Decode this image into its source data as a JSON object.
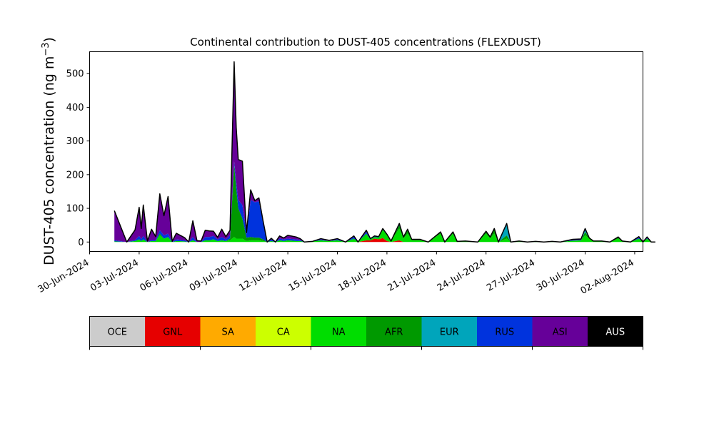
{
  "chart_data": {
    "type": "area",
    "title": "Continental contribution to DUST-405 concentrations (FLEXDUST)",
    "ylabel": "DUST-405 concentration (ng m",
    "ylabel_sup": "−3",
    "ylabel_close": ")",
    "xlabel": "",
    "ylim": [
      -28,
      565
    ],
    "xlim": [
      "2024-06-30T00:00",
      "2024-08-02T12:00"
    ],
    "yticks": [
      0,
      100,
      200,
      300,
      400,
      500
    ],
    "xticks": [
      "2024-06-30",
      "2024-07-03",
      "2024-07-06",
      "2024-07-09",
      "2024-07-12",
      "2024-07-15",
      "2024-07-18",
      "2024-07-21",
      "2024-07-24",
      "2024-07-27",
      "2024-07-30",
      "2024-08-02"
    ],
    "xtick_labels": [
      "30-Jun-2024",
      "03-Jul-2024",
      "06-Jul-2024",
      "09-Jul-2024",
      "12-Jul-2024",
      "15-Jul-2024",
      "18-Jul-2024",
      "21-Jul-2024",
      "24-Jul-2024",
      "27-Jul-2024",
      "30-Jul-2024",
      "02-Aug-2024"
    ],
    "grid": false,
    "legend_position": "below (horizontal color bar)",
    "series": [
      {
        "name": "OCE",
        "color": "#cccccc"
      },
      {
        "name": "GNL",
        "color": "#e60000"
      },
      {
        "name": "SA",
        "color": "#ffaa00"
      },
      {
        "name": "CA",
        "color": "#ccff00"
      },
      {
        "name": "NA",
        "color": "#00dd00"
      },
      {
        "name": "AFR",
        "color": "#009900"
      },
      {
        "name": "EUR",
        "color": "#00a5bb"
      },
      {
        "name": "RUS",
        "color": "#0033dd"
      },
      {
        "name": "ASI",
        "color": "#660099"
      },
      {
        "name": "AUS",
        "color": "#000000"
      }
    ],
    "points": [
      {
        "t": "2024-07-01T12:00",
        "v": {
          "NA": 2,
          "RUS": 3,
          "ASI": 88
        }
      },
      {
        "t": "2024-07-02T06:00",
        "v": {
          "NA": 0,
          "ASI": 0
        }
      },
      {
        "t": "2024-07-02T18:00",
        "v": {
          "NA": 3,
          "RUS": 3,
          "ASI": 30
        }
      },
      {
        "t": "2024-07-03T00:00",
        "v": {
          "NA": 8,
          "RUS": 10,
          "ASI": 85
        }
      },
      {
        "t": "2024-07-03T03:00",
        "v": {
          "NA": 3,
          "RUS": 5,
          "ASI": 32
        }
      },
      {
        "t": "2024-07-03T06:00",
        "v": {
          "NA": 8,
          "RUS": 10,
          "ASI": 92
        }
      },
      {
        "t": "2024-07-03T12:00",
        "v": {
          "ASI": 3
        }
      },
      {
        "t": "2024-07-03T18:00",
        "v": {
          "NA": 3,
          "RUS": 3,
          "ASI": 32
        }
      },
      {
        "t": "2024-07-04T00:00",
        "v": {
          "NA": 3,
          "RUS": 3,
          "ASI": 10
        }
      },
      {
        "t": "2024-07-04T06:00",
        "v": {
          "NA": 20,
          "AFR": 5,
          "RUS": 10,
          "ASI": 108
        }
      },
      {
        "t": "2024-07-04T12:00",
        "v": {
          "NA": 10,
          "RUS": 10,
          "ASI": 58
        }
      },
      {
        "t": "2024-07-04T18:00",
        "v": {
          "NA": 15,
          "RUS": 10,
          "ASI": 110
        }
      },
      {
        "t": "2024-07-05T00:00",
        "v": {
          "ASI": 2
        }
      },
      {
        "t": "2024-07-05T06:00",
        "v": {
          "NA": 3,
          "RUS": 5,
          "ASI": 18
        }
      },
      {
        "t": "2024-07-05T18:00",
        "v": {
          "NA": 2,
          "RUS": 3,
          "ASI": 8
        }
      },
      {
        "t": "2024-07-06T00:00",
        "v": {
          "ASI": 0
        }
      },
      {
        "t": "2024-07-06T06:00",
        "v": {
          "NA": 5,
          "RUS": 10,
          "ASI": 48
        }
      },
      {
        "t": "2024-07-06T12:00",
        "v": {
          "ASI": 4
        }
      },
      {
        "t": "2024-07-06T18:00",
        "v": {
          "ASI": 3
        }
      },
      {
        "t": "2024-07-07T00:00",
        "v": {
          "NA": 5,
          "RUS": 10,
          "ASI": 20
        }
      },
      {
        "t": "2024-07-07T06:00",
        "v": {
          "NA": 5,
          "RUS": 10,
          "ASI": 18
        }
      },
      {
        "t": "2024-07-07T12:00",
        "v": {
          "NA": 8,
          "RUS": 10,
          "ASI": 14
        }
      },
      {
        "t": "2024-07-07T18:00",
        "v": {
          "NA": 3,
          "RUS": 5,
          "ASI": 6
        }
      },
      {
        "t": "2024-07-08T00:00",
        "v": {
          "NA": 5,
          "RUS": 10,
          "ASI": 23
        }
      },
      {
        "t": "2024-07-08T06:00",
        "v": {
          "NA": 3,
          "RUS": 5,
          "ASI": 8
        }
      },
      {
        "t": "2024-07-08T12:00",
        "v": {
          "NA": 5,
          "AFR": 5,
          "RUS": 10,
          "ASI": 15
        }
      },
      {
        "t": "2024-07-08T18:00",
        "v": {
          "NA": 15,
          "AFR": 215,
          "RUS": 10,
          "ASI": 295
        }
      },
      {
        "t": "2024-07-08T21:00",
        "v": {
          "NA": 10,
          "AFR": 150,
          "RUS": 20,
          "ASI": 160
        }
      },
      {
        "t": "2024-07-09T00:00",
        "v": {
          "NA": 10,
          "AFR": 90,
          "RUS": 25,
          "ASI": 120
        }
      },
      {
        "t": "2024-07-09T06:00",
        "v": {
          "NA": 10,
          "AFR": 60,
          "RUS": 40,
          "ASI": 130
        }
      },
      {
        "t": "2024-07-09T12:00",
        "v": {
          "NA": 3,
          "AFR": 10,
          "RUS": 10,
          "ASI": 5
        }
      },
      {
        "t": "2024-07-09T18:00",
        "v": {
          "NA": 5,
          "AFR": 10,
          "RUS": 110,
          "ASI": 30
        }
      },
      {
        "t": "2024-07-10T00:00",
        "v": {
          "NA": 5,
          "AFR": 8,
          "RUS": 105,
          "ASI": 5
        }
      },
      {
        "t": "2024-07-10T06:00",
        "v": {
          "NA": 5,
          "AFR": 8,
          "RUS": 108,
          "ASI": 10
        }
      },
      {
        "t": "2024-07-10T12:00",
        "v": {
          "NA": 3,
          "AFR": 5,
          "RUS": 50,
          "ASI": 5
        }
      },
      {
        "t": "2024-07-10T18:00",
        "v": {
          "NA": 0
        }
      },
      {
        "t": "2024-07-11T00:00",
        "v": {
          "NA": 3,
          "RUS": 5,
          "ASI": 3
        }
      },
      {
        "t": "2024-07-11T06:00",
        "v": {
          "NA": 0
        }
      },
      {
        "t": "2024-07-11T12:00",
        "v": {
          "NA": 5,
          "RUS": 5,
          "ASI": 8
        }
      },
      {
        "t": "2024-07-11T18:00",
        "v": {
          "NA": 3,
          "RUS": 5,
          "ASI": 4
        }
      },
      {
        "t": "2024-07-12T00:00",
        "v": {
          "NA": 5,
          "RUS": 5,
          "ASI": 10
        }
      },
      {
        "t": "2024-07-12T12:00",
        "v": {
          "NA": 3,
          "RUS": 5,
          "ASI": 7
        }
      },
      {
        "t": "2024-07-12T18:00",
        "v": {
          "NA": 3,
          "RUS": 3,
          "ASI": 4
        }
      },
      {
        "t": "2024-07-13T00:00",
        "v": {
          "NA": 0
        }
      },
      {
        "t": "2024-07-13T12:00",
        "v": {
          "NA": 2
        }
      },
      {
        "t": "2024-07-14T00:00",
        "v": {
          "NA": 5,
          "RUS": 3,
          "ASI": 2
        }
      },
      {
        "t": "2024-07-14T12:00",
        "v": {
          "NA": 3,
          "ASI": 2
        }
      },
      {
        "t": "2024-07-15T00:00",
        "v": {
          "NA": 5,
          "RUS": 3,
          "ASI": 2
        }
      },
      {
        "t": "2024-07-15T12:00",
        "v": {
          "NA": 0
        }
      },
      {
        "t": "2024-07-16T00:00",
        "v": {
          "NA": 10,
          "RUS": 5,
          "ASI": 3
        }
      },
      {
        "t": "2024-07-16T06:00",
        "v": {
          "NA": 0
        }
      },
      {
        "t": "2024-07-16T18:00",
        "v": {
          "GNL": 5,
          "NA": 20,
          "RUS": 5,
          "ASI": 5
        }
      },
      {
        "t": "2024-07-17T00:00",
        "v": {
          "GNL": 5,
          "NA": 3,
          "RUS": 2
        }
      },
      {
        "t": "2024-07-17T06:00",
        "v": {
          "GNL": 10,
          "NA": 5,
          "RUS": 3
        }
      },
      {
        "t": "2024-07-17T12:00",
        "v": {
          "GNL": 8,
          "NA": 5,
          "RUS": 3
        }
      },
      {
        "t": "2024-07-17T18:00",
        "v": {
          "GNL": 12,
          "NA": 25,
          "RUS": 3
        }
      },
      {
        "t": "2024-07-18T00:00",
        "v": {
          "GNL": 3,
          "NA": 18,
          "RUS": 2
        }
      },
      {
        "t": "2024-07-18T06:00",
        "v": {
          "NA": 3
        }
      },
      {
        "t": "2024-07-18T18:00",
        "v": {
          "GNL": 5,
          "NA": 35,
          "AFR": 10,
          "RUS": 5
        }
      },
      {
        "t": "2024-07-19T00:00",
        "v": {
          "NA": 10,
          "AFR": 5
        }
      },
      {
        "t": "2024-07-19T06:00",
        "v": {
          "NA": 25,
          "AFR": 10,
          "RUS": 3
        }
      },
      {
        "t": "2024-07-19T12:00",
        "v": {
          "NA": 5,
          "AFR": 3
        }
      },
      {
        "t": "2024-07-20T00:00",
        "v": {
          "NA": 5,
          "AFR": 3
        }
      },
      {
        "t": "2024-07-20T12:00",
        "v": {
          "NA": 0
        }
      },
      {
        "t": "2024-07-21T06:00",
        "v": {
          "NA": 25,
          "AFR": 5
        }
      },
      {
        "t": "2024-07-21T12:00",
        "v": {
          "NA": 0
        }
      },
      {
        "t": "2024-07-22T00:00",
        "v": {
          "NA": 25,
          "AFR": 5
        }
      },
      {
        "t": "2024-07-22T06:00",
        "v": {
          "NA": 2
        }
      },
      {
        "t": "2024-07-22T18:00",
        "v": {
          "NA": 3
        }
      },
      {
        "t": "2024-07-23T12:00",
        "v": {
          "NA": 0
        }
      },
      {
        "t": "2024-07-24T00:00",
        "v": {
          "NA": 25,
          "AFR": 5,
          "RUS": 2
        }
      },
      {
        "t": "2024-07-24T06:00",
        "v": {
          "NA": 10,
          "AFR": 5
        }
      },
      {
        "t": "2024-07-24T12:00",
        "v": {
          "NA": 25,
          "AFR": 12,
          "RUS": 3
        }
      },
      {
        "t": "2024-07-24T18:00",
        "v": {
          "NA": 0
        }
      },
      {
        "t": "2024-07-25T06:00",
        "v": {
          "NA": 10,
          "AFR": 10,
          "EUR": 30,
          "RUS": 5
        }
      },
      {
        "t": "2024-07-25T12:00",
        "v": {
          "NA": 0
        }
      },
      {
        "t": "2024-07-26T00:00",
        "v": {
          "NA": 3
        }
      },
      {
        "t": "2024-07-26T12:00",
        "v": {
          "NA": 0
        }
      },
      {
        "t": "2024-07-27T00:00",
        "v": {
          "NA": 2
        }
      },
      {
        "t": "2024-07-27T12:00",
        "v": {
          "NA": 0
        }
      },
      {
        "t": "2024-07-28T00:00",
        "v": {
          "NA": 2
        }
      },
      {
        "t": "2024-07-28T12:00",
        "v": {
          "NA": 0
        }
      },
      {
        "t": "2024-07-29T06:00",
        "v": {
          "NA": 4,
          "RUS": 2,
          "ASI": 2
        }
      },
      {
        "t": "2024-07-29T18:00",
        "v": {
          "NA": 5,
          "RUS": 2,
          "ASI": 2
        }
      },
      {
        "t": "2024-07-30T00:00",
        "v": {
          "NA": 20,
          "AFR": 10,
          "EUR": 5,
          "RUS": 3,
          "ASI": 2
        }
      },
      {
        "t": "2024-07-30T06:00",
        "v": {
          "NA": 10,
          "AFR": 2
        }
      },
      {
        "t": "2024-07-30T12:00",
        "v": {
          "NA": 3
        }
      },
      {
        "t": "2024-07-31T00:00",
        "v": {
          "NA": 3
        }
      },
      {
        "t": "2024-07-31T12:00",
        "v": {
          "NA": 0
        }
      },
      {
        "t": "2024-08-01T00:00",
        "v": {
          "NA": 10,
          "AFR": 5
        }
      },
      {
        "t": "2024-08-01T06:00",
        "v": {
          "NA": 3
        }
      },
      {
        "t": "2024-08-01T18:00",
        "v": {
          "NA": 0
        }
      },
      {
        "t": "2024-08-02T06:00",
        "v": {
          "NA": 10,
          "RUS": 3,
          "ASI": 3
        }
      },
      {
        "t": "2024-08-02T12:00",
        "v": {
          "NA": 0
        }
      },
      {
        "t": "2024-08-02T18:00",
        "v": {
          "NA": 10,
          "RUS": 2,
          "ASI": 3
        }
      },
      {
        "t": "2024-08-03T00:00",
        "v": {
          "NA": 0
        }
      },
      {
        "t": "2024-08-03T06:00",
        "v": {
          "NA": 0
        }
      }
    ]
  }
}
